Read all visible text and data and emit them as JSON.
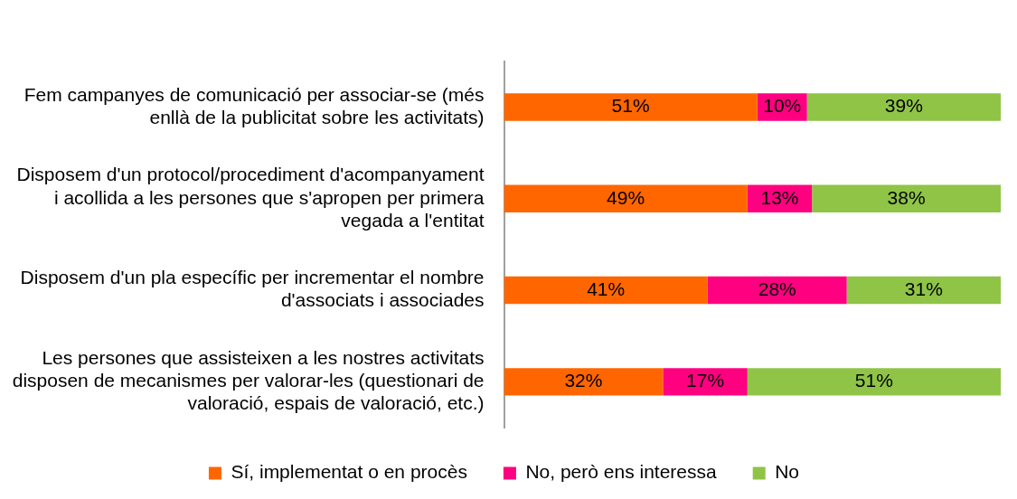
{
  "chart_data": {
    "type": "bar",
    "orientation": "horizontal",
    "stacked": true,
    "grid": false,
    "legend": "bottom",
    "tick_labels": "y",
    "categories": [
      "Fem campanyes de comunicació per associar-se (més enllà de la publicitat sobre les activitats)",
      "Disposem d'un protocol/procediment d'acompanyament i acollida a les persones que s'apropen per primera vegada a l'entitat",
      "Disposem d'un pla específic per incrementar el nombre d'associats i associades",
      "Les persones que assisteixen a les nostres activitats disposen de mecanismes per valorar-les (questionari de valoració, espais de valoració, etc.)"
    ],
    "series": [
      {
        "name": "Sí, implementat o en procès",
        "color": "#ff6600",
        "values": [
          51,
          49,
          41,
          32
        ],
        "value_labels": [
          "51%",
          "49%",
          "41%",
          "32%"
        ]
      },
      {
        "name": "No, però ens interessa",
        "color": "#ff0080",
        "values": [
          10,
          13,
          28,
          17
        ],
        "value_labels": [
          "10%",
          "13%",
          "28%",
          "17%"
        ]
      },
      {
        "name": "No",
        "color": "#8fc447",
        "values": [
          39,
          38,
          31,
          51
        ],
        "value_labels": [
          "39%",
          "38%",
          "31%",
          "51%"
        ]
      }
    ]
  }
}
